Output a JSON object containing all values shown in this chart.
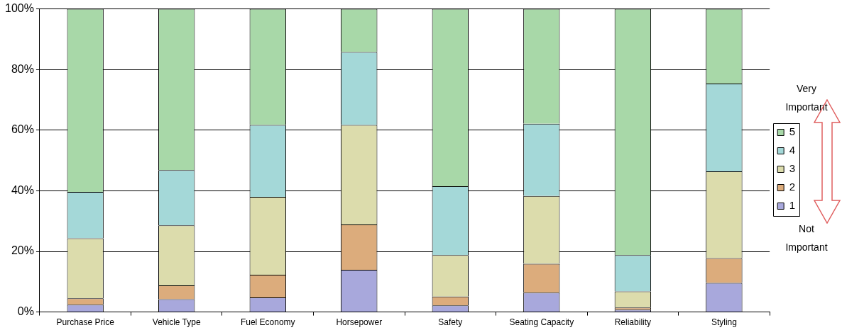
{
  "chart_data": {
    "type": "bar",
    "stacked": true,
    "categories": [
      "Purchase Price",
      "Vehicle Type",
      "Fuel Economy",
      "Horsepower",
      "Safety",
      "Seating Capacity",
      "Reliability",
      "Styling"
    ],
    "series": [
      {
        "name": "1",
        "color": "#a8a8dc",
        "values": [
          2.4,
          4.2,
          4.8,
          13.9,
          2.2,
          6.4,
          0.8,
          9.6
        ]
      },
      {
        "name": "2",
        "color": "#dcac7c",
        "values": [
          2.1,
          4.6,
          7.5,
          15.0,
          2.9,
          9.5,
          0.7,
          8.2
        ]
      },
      {
        "name": "3",
        "color": "#dcdcac",
        "values": [
          19.8,
          19.8,
          25.7,
          32.8,
          13.7,
          22.4,
          5.3,
          28.6
        ]
      },
      {
        "name": "4",
        "color": "#a4d8d8",
        "values": [
          15.3,
          18.2,
          23.7,
          24.1,
          22.7,
          23.8,
          12.0,
          29.0
        ]
      },
      {
        "name": "5",
        "color": "#a8d8a8",
        "values": [
          60.4,
          53.2,
          38.3,
          14.2,
          58.5,
          37.9,
          81.2,
          24.6
        ]
      }
    ],
    "ylim": [
      0,
      100
    ],
    "yticks": [
      {
        "value": 0,
        "label": "0%"
      },
      {
        "value": 20,
        "label": "20%"
      },
      {
        "value": 40,
        "label": "40%"
      },
      {
        "value": 60,
        "label": "60%"
      },
      {
        "value": 80,
        "label": "80%"
      },
      {
        "value": 100,
        "label": "100%"
      }
    ],
    "grid": "y",
    "legend": "right",
    "annotations": [
      "Very Important",
      "Not Important"
    ]
  }
}
